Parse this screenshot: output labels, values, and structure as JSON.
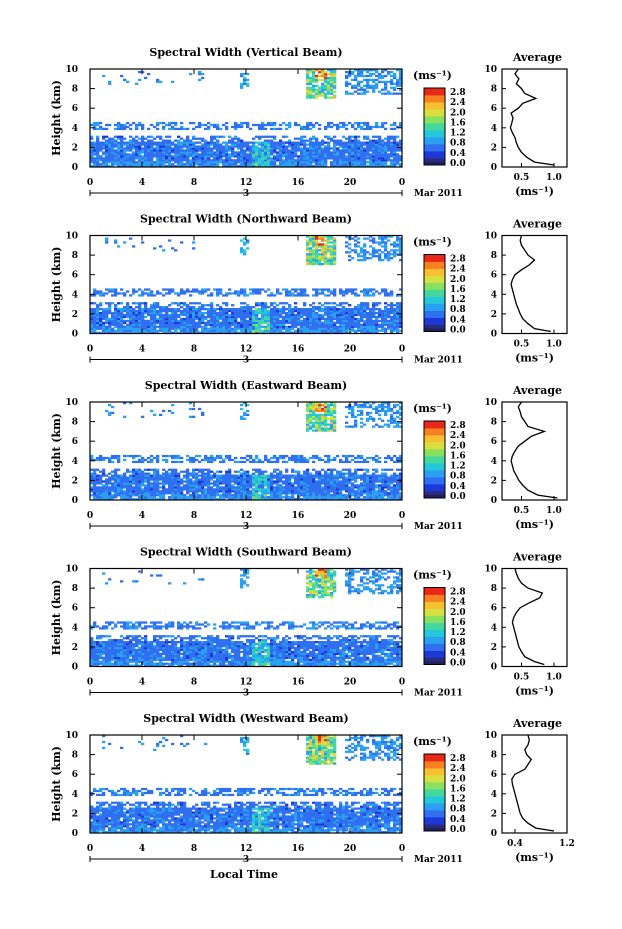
{
  "chart_data": [
    {
      "type": "heatmap",
      "title": "Spectral Width (Vertical Beam)",
      "ylabel": "Height (km)",
      "y_ticks": [
        "0",
        "2",
        "4",
        "6",
        "8",
        "10"
      ],
      "x_ticks": [
        "0",
        "4",
        "8",
        "12",
        "16",
        "20",
        "0"
      ],
      "ylim": [
        0,
        10
      ],
      "xlim": [
        0,
        24
      ],
      "date_marker": "3",
      "date_label": "Mar 2011",
      "colorbar": {
        "unit": "(ms⁻¹)",
        "labels": [
          "0.0",
          "0.4",
          "0.8",
          "1.2",
          "1.6",
          "2.0",
          "2.4",
          "2.8"
        ]
      },
      "profile": {
        "title": "Average",
        "xlabel": "(ms⁻¹)",
        "x_ticks": [
          "0.5",
          "1.0"
        ],
        "xlim": [
          0.2,
          1.2
        ],
        "y_ticks": [
          "0",
          "2",
          "4",
          "6",
          "8",
          "10"
        ],
        "heights": [
          0.2,
          0.5,
          1,
          1.5,
          2,
          2.5,
          3,
          3.5,
          4,
          4.5,
          5,
          5.5,
          6,
          6.5,
          7,
          7.5,
          8,
          8.5,
          9,
          9.5,
          10
        ],
        "values": [
          1.0,
          0.7,
          0.58,
          0.5,
          0.45,
          0.42,
          0.4,
          0.36,
          0.33,
          0.35,
          0.37,
          0.34,
          0.45,
          0.52,
          0.72,
          0.55,
          0.5,
          0.42,
          0.46,
          0.4,
          0.45
        ]
      }
    },
    {
      "type": "heatmap",
      "title": "Spectral Width (Northward Beam)",
      "ylabel": "Height (km)",
      "y_ticks": [
        "0",
        "2",
        "4",
        "6",
        "8",
        "10"
      ],
      "x_ticks": [
        "0",
        "4",
        "8",
        "12",
        "16",
        "20",
        "0"
      ],
      "ylim": [
        0,
        10
      ],
      "xlim": [
        0,
        24
      ],
      "date_marker": "3",
      "date_label": "Mar 2011",
      "colorbar": {
        "unit": "(ms⁻¹)",
        "labels": [
          "0.0",
          "0.4",
          "0.8",
          "1.2",
          "1.6",
          "2.0",
          "2.4",
          "2.8"
        ]
      },
      "profile": {
        "title": "Average",
        "xlabel": "(ms⁻¹)",
        "x_ticks": [
          "0.5",
          "1.0"
        ],
        "xlim": [
          0.2,
          1.2
        ],
        "y_ticks": [
          "0",
          "2",
          "4",
          "6",
          "8",
          "10"
        ],
        "heights": [
          0.2,
          0.5,
          1,
          1.5,
          2,
          2.5,
          3,
          3.5,
          4,
          4.5,
          5,
          5.5,
          6,
          6.5,
          7,
          7.5,
          8,
          8.5,
          9,
          9.5,
          10
        ],
        "values": [
          0.95,
          0.7,
          0.6,
          0.52,
          0.48,
          0.45,
          0.42,
          0.4,
          0.38,
          0.36,
          0.34,
          0.36,
          0.4,
          0.5,
          0.62,
          0.7,
          0.6,
          0.55,
          0.5,
          0.48,
          0.5
        ]
      }
    },
    {
      "type": "heatmap",
      "title": "Spectral Width (Eastward Beam)",
      "ylabel": "Height (km)",
      "y_ticks": [
        "0",
        "2",
        "4",
        "6",
        "8",
        "10"
      ],
      "x_ticks": [
        "0",
        "4",
        "8",
        "12",
        "16",
        "20",
        "0"
      ],
      "ylim": [
        0,
        10
      ],
      "xlim": [
        0,
        24
      ],
      "date_marker": "3",
      "date_label": "Mar 2011",
      "colorbar": {
        "unit": "(ms⁻¹)",
        "labels": [
          "0.0",
          "0.4",
          "0.8",
          "1.2",
          "1.6",
          "2.0",
          "2.4",
          "2.8"
        ]
      },
      "profile": {
        "title": "Average",
        "xlabel": "(ms⁻¹)",
        "x_ticks": [
          "0.5",
          "1.0"
        ],
        "xlim": [
          0.2,
          1.2
        ],
        "y_ticks": [
          "0",
          "2",
          "4",
          "6",
          "8",
          "10"
        ],
        "heights": [
          0.2,
          0.5,
          1,
          1.5,
          2,
          2.5,
          3,
          3.5,
          4,
          4.5,
          5,
          5.5,
          6,
          6.5,
          7,
          7.5,
          8,
          8.5,
          9,
          9.5,
          10
        ],
        "values": [
          1.05,
          0.75,
          0.6,
          0.52,
          0.46,
          0.42,
          0.38,
          0.36,
          0.34,
          0.36,
          0.4,
          0.45,
          0.55,
          0.65,
          0.85,
          0.6,
          0.55,
          0.5,
          0.48,
          0.45,
          0.5
        ]
      }
    },
    {
      "type": "heatmap",
      "title": "Spectral Width (Southward Beam)",
      "ylabel": "Height (km)",
      "y_ticks": [
        "0",
        "2",
        "4",
        "6",
        "8",
        "10"
      ],
      "x_ticks": [
        "0",
        "4",
        "8",
        "12",
        "16",
        "20",
        "0"
      ],
      "ylim": [
        0,
        10
      ],
      "xlim": [
        0,
        24
      ],
      "date_marker": "3",
      "date_label": "Mar 2011",
      "colorbar": {
        "unit": "(ms⁻¹)",
        "labels": [
          "0.0",
          "0.4",
          "0.8",
          "1.2",
          "1.6",
          "2.0",
          "2.4",
          "2.8"
        ]
      },
      "profile": {
        "title": "Average",
        "xlabel": "(ms⁻¹)",
        "x_ticks": [
          "0.5",
          "1.0"
        ],
        "xlim": [
          0.2,
          1.2
        ],
        "y_ticks": [
          "0",
          "2",
          "4",
          "6",
          "8",
          "10"
        ],
        "heights": [
          0.2,
          0.5,
          1,
          1.5,
          2,
          2.5,
          3,
          3.5,
          4,
          4.5,
          5,
          5.5,
          6,
          6.5,
          7,
          7.5,
          8,
          8.5,
          9,
          9.5,
          10
        ],
        "values": [
          0.85,
          0.7,
          0.55,
          0.5,
          0.46,
          0.44,
          0.42,
          0.4,
          0.38,
          0.36,
          0.38,
          0.42,
          0.48,
          0.62,
          0.78,
          0.82,
          0.6,
          0.5,
          0.45,
          0.42,
          0.4
        ]
      }
    },
    {
      "type": "heatmap",
      "title": "Spectral Width (Westward Beam)",
      "ylabel": "Height (km)",
      "xlabel": "Local Time",
      "y_ticks": [
        "0",
        "2",
        "4",
        "6",
        "8",
        "10"
      ],
      "x_ticks": [
        "0",
        "4",
        "8",
        "12",
        "16",
        "20",
        "0"
      ],
      "ylim": [
        0,
        10
      ],
      "xlim": [
        0,
        24
      ],
      "date_marker": "3",
      "date_label": "Mar 2011",
      "colorbar": {
        "unit": "(ms⁻¹)",
        "labels": [
          "0.0",
          "0.4",
          "0.8",
          "1.2",
          "1.6",
          "2.0",
          "2.4",
          "2.8"
        ]
      },
      "profile": {
        "title": "Average",
        "xlabel": "(ms⁻¹)",
        "x_ticks": [
          "0.4",
          "1.2"
        ],
        "xlim": [
          0.2,
          1.2
        ],
        "y_ticks": [
          "0",
          "2",
          "4",
          "6",
          "8",
          "10"
        ],
        "heights": [
          0.2,
          0.5,
          1,
          1.5,
          2,
          2.5,
          3,
          3.5,
          4,
          4.5,
          5,
          5.5,
          6,
          6.5,
          7,
          7.5,
          8,
          8.5,
          9,
          9.5,
          10
        ],
        "values": [
          1.0,
          0.72,
          0.6,
          0.52,
          0.48,
          0.46,
          0.44,
          0.42,
          0.4,
          0.38,
          0.36,
          0.35,
          0.4,
          0.55,
          0.6,
          0.65,
          0.58,
          0.55,
          0.6,
          0.62,
          0.6
        ]
      }
    }
  ],
  "colors": {
    "scale": [
      "#2b2b7a",
      "#1c39d8",
      "#2f6ff0",
      "#2aa0f0",
      "#25c8d8",
      "#44d8a0",
      "#8ae060",
      "#d8e040",
      "#f8c030",
      "#f88020",
      "#e82818"
    ]
  }
}
